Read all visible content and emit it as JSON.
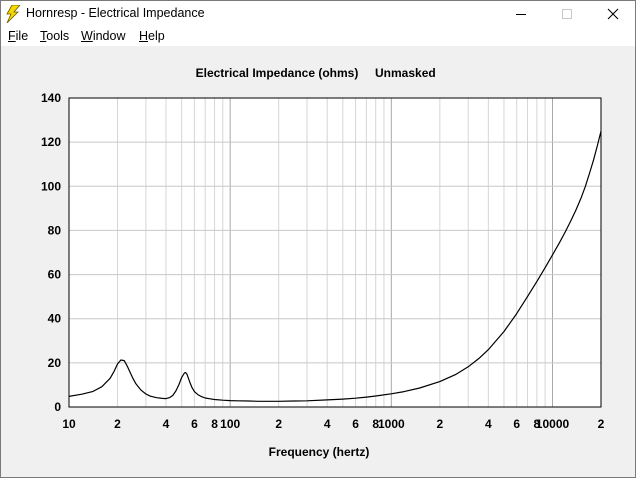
{
  "window": {
    "title": "Hornresp - Electrical Impedance",
    "icons": {
      "app": "lightning-bolt-icon",
      "minimize": "minimize-icon",
      "maximize": "maximize-icon",
      "close": "close-icon"
    }
  },
  "menu": {
    "items": [
      {
        "label": "File"
      },
      {
        "label": "Tools"
      },
      {
        "label": "Window"
      },
      {
        "label": "Help"
      }
    ]
  },
  "chart_data": {
    "type": "line",
    "title": "Electrical Impedance (ohms)",
    "subtitle": "Unmasked",
    "xlabel": "Frequency (hertz)",
    "ylabel": "",
    "x_scale": "log",
    "xlim": [
      10,
      20000
    ],
    "ylim": [
      0,
      140
    ],
    "grid": true,
    "y_ticks": [
      0,
      20,
      40,
      60,
      80,
      100,
      120,
      140
    ],
    "x_tick_labels": [
      {
        "value": 10,
        "label": "10"
      },
      {
        "value": 20,
        "label": "2"
      },
      {
        "value": 40,
        "label": "4"
      },
      {
        "value": 60,
        "label": "6"
      },
      {
        "value": 80,
        "label": "8"
      },
      {
        "value": 100,
        "label": "100"
      },
      {
        "value": 200,
        "label": "2"
      },
      {
        "value": 400,
        "label": "4"
      },
      {
        "value": 600,
        "label": "6"
      },
      {
        "value": 800,
        "label": "8"
      },
      {
        "value": 1000,
        "label": "1000"
      },
      {
        "value": 2000,
        "label": "2"
      },
      {
        "value": 4000,
        "label": "4"
      },
      {
        "value": 6000,
        "label": "6"
      },
      {
        "value": 8000,
        "label": "8"
      },
      {
        "value": 10000,
        "label": "10000"
      },
      {
        "value": 20000,
        "label": "2"
      }
    ],
    "series": [
      {
        "color": "#000000",
        "x": [
          10,
          12,
          14,
          16,
          18,
          19,
          20,
          21,
          22,
          23,
          24,
          25,
          26,
          28,
          30,
          32,
          35,
          38,
          40,
          42,
          44,
          46,
          48,
          50,
          52,
          53,
          54,
          55,
          56,
          58,
          60,
          63,
          66,
          70,
          75,
          80,
          90,
          100,
          110,
          130,
          150,
          200,
          250,
          300,
          400,
          500,
          600,
          700,
          800,
          1000,
          1200,
          1500,
          2000,
          2500,
          3000,
          3500,
          4000,
          5000,
          6000,
          7000,
          8000,
          9000,
          10000,
          11000,
          12000,
          13000,
          14000,
          15000,
          16000,
          17000,
          18000,
          19000,
          20000
        ],
        "y": [
          4.8,
          5.8,
          7.0,
          9.2,
          13.0,
          16.0,
          19.5,
          21.3,
          21.0,
          18.5,
          15.5,
          12.8,
          10.5,
          7.6,
          5.9,
          4.9,
          4.2,
          3.9,
          3.8,
          4.2,
          5.2,
          7.2,
          10.0,
          13.3,
          15.4,
          15.6,
          14.8,
          13.2,
          11.5,
          8.8,
          7.0,
          5.6,
          4.8,
          4.1,
          3.7,
          3.4,
          3.1,
          2.9,
          2.8,
          2.7,
          2.6,
          2.6,
          2.7,
          2.8,
          3.2,
          3.6,
          4.0,
          4.5,
          5.0,
          6.0,
          7.0,
          8.6,
          11.5,
          14.7,
          18.2,
          22.0,
          26.0,
          34.2,
          42.3,
          50.0,
          56.9,
          63.1,
          68.9,
          74.2,
          79.3,
          84.3,
          89.3,
          94.5,
          100.0,
          106.0,
          112.0,
          118.5,
          125.0
        ]
      }
    ]
  }
}
